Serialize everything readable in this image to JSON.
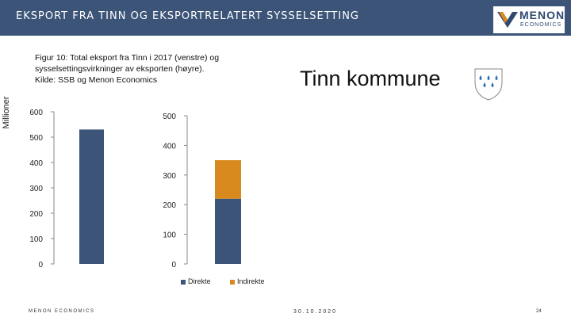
{
  "header": {
    "title": "EKSPORT FRA TINN OG EKSPORTRELATERT SYSSELSETTING"
  },
  "logo": {
    "line1": "MENON",
    "line2": "ECONOMICS"
  },
  "caption": [
    "Figur 10: Total eksport fra Tinn i 2017 (venstre) og",
    "sysselsettingsvirkninger av eksporten (høyre).",
    "Kilde: SSB og Menon Economics"
  ],
  "kommune_title": "Tinn kommune",
  "icons": {
    "shield": "coat-of-arms-icon"
  },
  "colors": {
    "header": "#3c5478",
    "direkte": "#3c5478",
    "indirekte": "#d98a1e"
  },
  "chart_data": [
    {
      "type": "bar",
      "ylabel": "Millioner",
      "ylim": [
        0,
        600
      ],
      "yticks": [
        0,
        100,
        200,
        300,
        400,
        500,
        600
      ],
      "values": [
        530
      ]
    },
    {
      "type": "bar",
      "stacked": true,
      "ylim": [
        0,
        500
      ],
      "yticks": [
        0,
        100,
        200,
        300,
        400,
        500
      ],
      "series": [
        {
          "name": "Direkte",
          "values": [
            220
          ]
        },
        {
          "name": "Indirekte",
          "values": [
            130
          ]
        }
      ]
    }
  ],
  "footer": {
    "left": "MENON ECONOMICS",
    "date": "30.10.2020",
    "page": "24"
  }
}
